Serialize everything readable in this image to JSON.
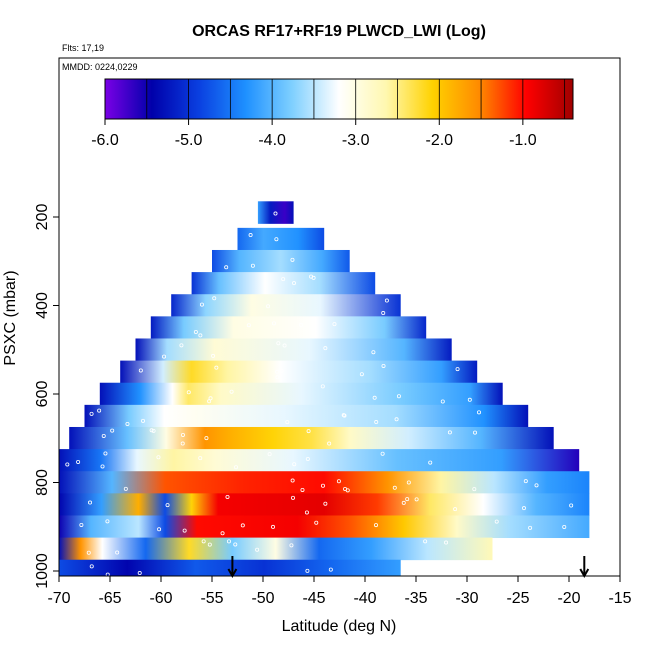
{
  "chart_data": {
    "type": "heatmap",
    "title": "ORCAS RF17+RF19 PLWCD_LWI (Log)",
    "annotations": [
      "Flts: 17,19",
      "MMDD: 0224,0229"
    ],
    "xlabel": "Latitude (deg N)",
    "ylabel": "PSXC (mbar)",
    "xlim": [
      -70,
      -15
    ],
    "ylim": [
      1000,
      50
    ],
    "x_ticks": [
      "-70",
      "-65",
      "-60",
      "-55",
      "-50",
      "-45",
      "-40",
      "-35",
      "-30",
      "-25",
      "-20",
      "-15"
    ],
    "x_tick_values": [
      -70,
      -65,
      -60,
      -55,
      -50,
      -45,
      -40,
      -35,
      -30,
      -25,
      -20,
      -15
    ],
    "y_ticks": [
      "200",
      "400",
      "600",
      "800",
      "1000"
    ],
    "y_tick_values": [
      200,
      400,
      600,
      800,
      1000
    ],
    "y_reversed": true,
    "colorbar": {
      "range": [
        -6.0,
        -0.4
      ],
      "tick_labels": [
        "-6.0",
        "-5.0",
        "-4.0",
        "-3.0",
        "-2.0",
        "-1.0"
      ],
      "tick_values": [
        -6.0,
        -5.0,
        -4.0,
        -3.0,
        -2.0,
        -1.0
      ],
      "colors": [
        "#7a00e6",
        "#0000aa",
        "#0a3fe0",
        "#1e90ff",
        "#7fd0ff",
        "#ffffff",
        "#fff8b0",
        "#ffd200",
        "#ff8a00",
        "#ff0000",
        "#a00000"
      ]
    },
    "grid": false,
    "marker_latitudes": [
      -53,
      -18.5
    ],
    "bands": [
      {
        "p": 190,
        "x": [
          -50.5,
          -47
        ],
        "stops": [
          [
            0,
            -4.2
          ],
          [
            0.35,
            -5.2
          ],
          [
            0.75,
            -5.7
          ],
          [
            1,
            -5.3
          ]
        ]
      },
      {
        "p": 250,
        "x": [
          -52.5,
          -44
        ],
        "stops": [
          [
            0,
            -4.6
          ],
          [
            0.3,
            -4.1
          ],
          [
            0.7,
            -4.3
          ],
          [
            1,
            -4.8
          ]
        ]
      },
      {
        "p": 300,
        "x": [
          -55,
          -41.5
        ],
        "stops": [
          [
            0,
            -4.8
          ],
          [
            0.2,
            -4.0
          ],
          [
            0.5,
            -3.6
          ],
          [
            0.8,
            -4.1
          ],
          [
            1,
            -4.7
          ]
        ]
      },
      {
        "p": 350,
        "x": [
          -57,
          -39
        ],
        "stops": [
          [
            0,
            -5.0
          ],
          [
            0.15,
            -3.9
          ],
          [
            0.4,
            -3.2
          ],
          [
            0.7,
            -3.6
          ],
          [
            1,
            -4.8
          ]
        ]
      },
      {
        "p": 400,
        "x": [
          -59,
          -36.5
        ],
        "stops": [
          [
            0,
            -5.1
          ],
          [
            0.15,
            -3.7
          ],
          [
            0.35,
            -3.0
          ],
          [
            0.65,
            -3.3
          ],
          [
            1,
            -5.0
          ]
        ]
      },
      {
        "p": 450,
        "x": [
          -61,
          -34
        ],
        "stops": [
          [
            0,
            -5.2
          ],
          [
            0.12,
            -3.8
          ],
          [
            0.3,
            -3.0
          ],
          [
            0.6,
            -3.2
          ],
          [
            0.85,
            -3.8
          ],
          [
            1,
            -5.1
          ]
        ]
      },
      {
        "p": 500,
        "x": [
          -62.5,
          -31.5
        ],
        "stops": [
          [
            0,
            -5.3
          ],
          [
            0.1,
            -3.6
          ],
          [
            0.25,
            -2.9
          ],
          [
            0.55,
            -3.3
          ],
          [
            0.85,
            -4.0
          ],
          [
            1,
            -5.2
          ]
        ]
      },
      {
        "p": 550,
        "x": [
          -64,
          -29
        ],
        "stops": [
          [
            0,
            -5.3
          ],
          [
            0.12,
            -3.4
          ],
          [
            0.2,
            -2.2
          ],
          [
            0.3,
            -2.6
          ],
          [
            0.45,
            -3.2
          ],
          [
            0.7,
            -3.6
          ],
          [
            0.9,
            -4.2
          ],
          [
            1,
            -5.2
          ]
        ]
      },
      {
        "p": 600,
        "x": [
          -66,
          -26.5
        ],
        "stops": [
          [
            0,
            -5.3
          ],
          [
            0.1,
            -4.3
          ],
          [
            0.18,
            -3.2
          ],
          [
            0.22,
            -2.4
          ],
          [
            0.3,
            -2.8
          ],
          [
            0.5,
            -3.3
          ],
          [
            0.75,
            -3.8
          ],
          [
            0.92,
            -4.2
          ],
          [
            1,
            -5.3
          ]
        ]
      },
      {
        "p": 650,
        "x": [
          -67.5,
          -24
        ],
        "stops": [
          [
            0,
            -5.3
          ],
          [
            0.1,
            -3.8
          ],
          [
            0.18,
            -3.2
          ],
          [
            0.25,
            -3.1
          ],
          [
            0.45,
            -3.3
          ],
          [
            0.7,
            -3.6
          ],
          [
            0.9,
            -4.3
          ],
          [
            1,
            -5.3
          ]
        ]
      },
      {
        "p": 700,
        "x": [
          -69,
          -21.5
        ],
        "stops": [
          [
            0,
            -5.3
          ],
          [
            0.12,
            -3.9
          ],
          [
            0.2,
            -3.0
          ],
          [
            0.28,
            -1.6
          ],
          [
            0.33,
            -1.8
          ],
          [
            0.42,
            -2.1
          ],
          [
            0.5,
            -2.3
          ],
          [
            0.58,
            -2.8
          ],
          [
            0.7,
            -3.4
          ],
          [
            0.85,
            -4.0
          ],
          [
            1,
            -5.3
          ]
        ]
      },
      {
        "p": 750,
        "x": [
          -70,
          -19
        ],
        "stops": [
          [
            0,
            -5.3
          ],
          [
            0.08,
            -4.5
          ],
          [
            0.15,
            -3.3
          ],
          [
            0.22,
            -2.6
          ],
          [
            0.3,
            -2.9
          ],
          [
            0.45,
            -3.3
          ],
          [
            0.65,
            -3.9
          ],
          [
            0.85,
            -4.2
          ],
          [
            1,
            -5.6
          ]
        ]
      },
      {
        "p": 800,
        "x": [
          -70,
          -18
        ],
        "stops": [
          [
            0,
            -5.3
          ],
          [
            0.1,
            -4.0
          ],
          [
            0.2,
            -1.3
          ],
          [
            0.35,
            -1.1
          ],
          [
            0.5,
            -1.0
          ],
          [
            0.62,
            -1.6
          ],
          [
            0.72,
            -2.6
          ],
          [
            0.82,
            -3.5
          ],
          [
            0.92,
            -4.2
          ],
          [
            1,
            -4.4
          ]
        ]
      },
      {
        "p": 850,
        "x": [
          -70,
          -18
        ],
        "stops": [
          [
            0,
            -5.4
          ],
          [
            0.08,
            -4.2
          ],
          [
            0.15,
            -1.8
          ],
          [
            0.2,
            -4.8
          ],
          [
            0.25,
            -2.1
          ],
          [
            0.3,
            -0.9
          ],
          [
            0.5,
            -0.8
          ],
          [
            0.6,
            -1.2
          ],
          [
            0.7,
            -2.4
          ],
          [
            0.8,
            -3.2
          ],
          [
            0.9,
            -4.0
          ],
          [
            1,
            -4.4
          ]
        ]
      },
      {
        "p": 900,
        "x": [
          -70,
          -18
        ],
        "stops": [
          [
            0,
            -5.5
          ],
          [
            0.06,
            -4.0
          ],
          [
            0.15,
            -3.5
          ],
          [
            0.2,
            -4.8
          ],
          [
            0.26,
            -1.0
          ],
          [
            0.45,
            -0.9
          ],
          [
            0.55,
            -1.3
          ],
          [
            0.65,
            -2.0
          ],
          [
            0.75,
            -2.8
          ],
          [
            0.85,
            -3.6
          ],
          [
            1,
            -4.1
          ]
        ]
      },
      {
        "p": 950,
        "x": [
          -70,
          -27.5
        ],
        "stops": [
          [
            0,
            -5.3
          ],
          [
            0.05,
            -1.6
          ],
          [
            0.1,
            -3.2
          ],
          [
            0.2,
            -4.6
          ],
          [
            0.3,
            -2.2
          ],
          [
            0.4,
            -3.8
          ],
          [
            0.5,
            -3.0
          ],
          [
            0.6,
            -4.6
          ],
          [
            0.72,
            -4.2
          ],
          [
            0.85,
            -3.5
          ],
          [
            1,
            -2.7
          ]
        ]
      },
      {
        "p": 1000,
        "x": [
          -70,
          -36.5
        ],
        "stops": [
          [
            0,
            -4.8
          ],
          [
            0.2,
            -5.4
          ],
          [
            0.4,
            -4.7
          ],
          [
            0.6,
            -5.0
          ],
          [
            0.8,
            -4.6
          ],
          [
            1,
            -4.2
          ]
        ]
      }
    ]
  }
}
